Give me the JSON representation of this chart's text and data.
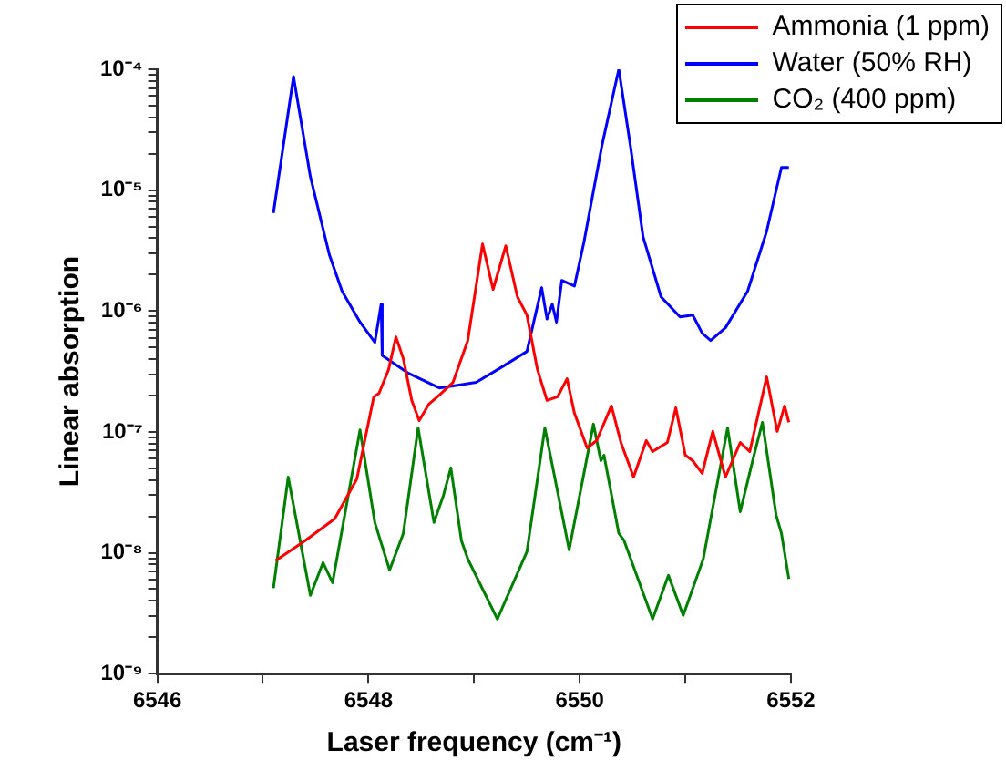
{
  "chart_data": {
    "type": "line",
    "xlabel": "Laser frequency (cm⁻¹)",
    "ylabel": "Linear absorption",
    "log": "y",
    "legend": "top right",
    "grid": false,
    "xlim": [
      6546,
      6552
    ],
    "xticks": [
      6546,
      {
        "value": 6547,
        "label": null
      },
      6548,
      {
        "value": 6549,
        "label": null
      },
      6550,
      {
        "value": 6551,
        "label": null
      },
      6552
    ],
    "ylim": [
      1e-09,
      0.0001
    ],
    "yticks": [
      {
        "value": 1e-09,
        "label": "10⁻⁹"
      },
      {
        "value": 2e-09,
        "label": null
      },
      {
        "value": 3e-09,
        "label": null
      },
      {
        "value": 4e-09,
        "label": null
      },
      {
        "value": 5e-09,
        "label": null
      },
      {
        "value": 6e-09,
        "label": null
      },
      {
        "value": 7e-09,
        "label": null
      },
      {
        "value": 8e-09,
        "label": null
      },
      {
        "value": 9e-09,
        "label": null
      },
      {
        "value": 1e-08,
        "label": "10⁻⁸"
      },
      {
        "value": 2e-08,
        "label": null
      },
      {
        "value": 3e-08,
        "label": null
      },
      {
        "value": 4e-08,
        "label": null
      },
      {
        "value": 5e-08,
        "label": null
      },
      {
        "value": 6e-08,
        "label": null
      },
      {
        "value": 7e-08,
        "label": null
      },
      {
        "value": 8e-08,
        "label": null
      },
      {
        "value": 9e-08,
        "label": null
      },
      {
        "value": 1e-07,
        "label": "10⁻⁷"
      },
      {
        "value": 2e-07,
        "label": null
      },
      {
        "value": 3e-07,
        "label": null
      },
      {
        "value": 4e-07,
        "label": null
      },
      {
        "value": 5e-07,
        "label": null
      },
      {
        "value": 6e-07,
        "label": null
      },
      {
        "value": 7e-07,
        "label": null
      },
      {
        "value": 8e-07,
        "label": null
      },
      {
        "value": 9e-07,
        "label": null
      },
      {
        "value": 1e-06,
        "label": "10⁻⁶"
      },
      {
        "value": 2e-06,
        "label": null
      },
      {
        "value": 3e-06,
        "label": null
      },
      {
        "value": 4e-06,
        "label": null
      },
      {
        "value": 5e-06,
        "label": null
      },
      {
        "value": 6e-06,
        "label": null
      },
      {
        "value": 7e-06,
        "label": null
      },
      {
        "value": 8e-06,
        "label": null
      },
      {
        "value": 9e-06,
        "label": null
      },
      {
        "value": 1e-05,
        "label": "10⁻⁵"
      },
      {
        "value": 2e-05,
        "label": null
      },
      {
        "value": 3e-05,
        "label": null
      },
      {
        "value": 4e-05,
        "label": null
      },
      {
        "value": 5e-05,
        "label": null
      },
      {
        "value": 6e-05,
        "label": null
      },
      {
        "value": 7e-05,
        "label": null
      },
      {
        "value": 8e-05,
        "label": null
      },
      {
        "value": 9e-05,
        "label": null
      },
      {
        "value": 0.0001,
        "label": "10⁻⁴"
      }
    ],
    "series": [
      {
        "name": "Ammonia (1 ppm)",
        "color": "#ff0000",
        "x": [
          6547.12,
          6547.4,
          6547.68,
          6547.89,
          6548.05,
          6548.1,
          6548.19,
          6548.26,
          6548.33,
          6548.41,
          6548.48,
          6548.57,
          6548.67,
          6548.8,
          6548.94,
          6549.08,
          6549.18,
          6549.3,
          6549.41,
          6549.5,
          6549.6,
          6549.69,
          6549.79,
          6549.88,
          6549.95,
          6550.07,
          6550.16,
          6550.3,
          6550.39,
          6550.51,
          6550.63,
          6550.69,
          6550.83,
          6550.91,
          6551.0,
          6551.07,
          6551.16,
          6551.26,
          6551.38,
          6551.52,
          6551.61,
          6551.77,
          6551.87,
          6551.94,
          6551.98
        ],
        "values": [
          8.6e-09,
          1.26e-08,
          1.91e-08,
          4.09e-08,
          1.95e-07,
          2.09e-07,
          3.27e-07,
          6.1e-07,
          4.03e-07,
          1.82e-07,
          1.24e-07,
          1.69e-07,
          2.01e-07,
          2.57e-07,
          5.7e-07,
          3.58e-06,
          1.51e-06,
          3.46e-06,
          1.31e-06,
          9.27e-07,
          3.27e-07,
          1.82e-07,
          1.95e-07,
          2.75e-07,
          1.43e-07,
          7.37e-08,
          8.47e-08,
          1.64e-07,
          8.18e-08,
          4.23e-08,
          8.47e-08,
          6.88e-08,
          8.18e-08,
          1.58e-07,
          6.41e-08,
          5.78e-08,
          4.54e-08,
          1.01e-07,
          4.23e-08,
          8.18e-08,
          6.88e-08,
          2.85e-07,
          1.01e-07,
          1.64e-07,
          1.2e-07
        ]
      },
      {
        "name": "Water (50% RH)",
        "color": "#0000ff",
        "x": [
          6547.1,
          6547.29,
          6547.45,
          6547.63,
          6547.75,
          6547.92,
          6548.06,
          6548.12,
          6548.13,
          6548.38,
          6548.67,
          6548.8,
          6549.02,
          6549.25,
          6549.5,
          6549.64,
          6549.69,
          6549.74,
          6549.78,
          6549.83,
          6549.95,
          6550.04,
          6550.21,
          6550.37,
          6550.48,
          6550.6,
          6550.77,
          6550.95,
          6551.07,
          6551.16,
          6551.24,
          6551.38,
          6551.59,
          6551.77,
          6551.91,
          6551.98
        ],
        "values": [
          6.46e-06,
          8.7e-05,
          1.29e-05,
          2.91e-06,
          1.46e-06,
          8.1e-07,
          5.5e-07,
          1.14e-06,
          4.3e-07,
          3.05e-07,
          2.31e-07,
          2.4e-07,
          2.57e-07,
          3.39e-07,
          4.63e-07,
          1.56e-06,
          8.6e-07,
          1.14e-06,
          8.1e-07,
          1.79e-06,
          1.61e-06,
          3.71e-06,
          2.33e-05,
          0.0001,
          2.33e-05,
          4.11e-06,
          1.31e-06,
          8.95e-07,
          9.27e-07,
          6.55e-07,
          5.7e-07,
          7.27e-07,
          1.46e-06,
          4.57e-06,
          1.54e-05,
          1.54e-05
        ]
      },
      {
        "name": "CO₂ (400 ppm)",
        "color": "#008000",
        "x": [
          6547.1,
          6547.24,
          6547.45,
          6547.57,
          6547.66,
          6547.92,
          6548.06,
          6548.2,
          6548.33,
          6548.47,
          6548.62,
          6548.71,
          6548.78,
          6548.88,
          6548.94,
          6549.22,
          6549.5,
          6549.67,
          6549.9,
          6550.04,
          6550.13,
          6550.2,
          6550.23,
          6550.37,
          6550.42,
          6550.69,
          6550.84,
          6550.98,
          6551.17,
          6551.4,
          6551.52,
          6551.65,
          6551.73,
          6551.86,
          6551.91,
          6551.98
        ],
        "values": [
          5.1e-09,
          4.23e-08,
          4.44e-09,
          8.3e-09,
          5.66e-09,
          1.04e-07,
          1.78e-08,
          7.2e-09,
          1.45e-08,
          1.08e-07,
          1.78e-08,
          2.99e-08,
          5.04e-08,
          1.26e-08,
          8.9e-09,
          2.83e-09,
          1.02e-08,
          1.08e-07,
          1.06e-08,
          4.54e-08,
          1.16e-07,
          5.78e-08,
          6.41e-08,
          1.45e-08,
          1.26e-08,
          2.83e-09,
          6.5e-09,
          3.03e-09,
          8.9e-09,
          1.08e-07,
          2.19e-08,
          6.41e-08,
          1.2e-07,
          2.04e-08,
          1.45e-08,
          6.07e-09
        ]
      }
    ]
  }
}
